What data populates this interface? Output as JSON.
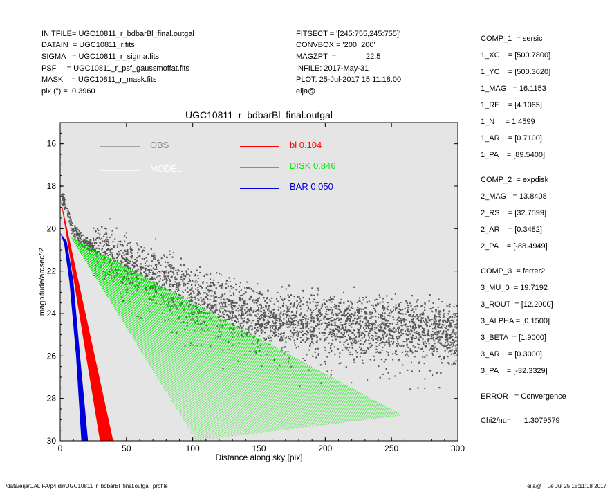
{
  "header": {
    "col1": [
      "INITFILE= UGC10811_r_bdbarBl_final.outgal",
      "DATAIN  = UGC10811_r.fits",
      "SIGMA   = UGC10811_r_sigma.fits",
      "PSF     = UGC10811_r_psf_gaussmoffat.fits",
      "MASK    = UGC10811_r_mask.fits",
      "pix (\") =  0.3960"
    ],
    "col2": [
      "FITSECT = '[245:755,245:755]'",
      "CONVBOX = '200, 200'",
      "MAGZPT  =              22.5",
      "INFILE: 2017-May-31",
      "PLOT: 25-Jul-2017 15:11:18.00",
      "eija@"
    ]
  },
  "components": [
    "COMP_1  = sersic",
    "1_XC    = [500.7800]",
    "1_YC    = [500.3620]",
    "1_MAG   = 16.1153",
    "1_RE    = [4.1065]",
    "1_N     = 1.4599",
    "1_AR    = [0.7100]",
    "1_PA    = [89.5400]",
    "",
    "COMP_2  = expdisk",
    "2_MAG   = 13.8408",
    "2_RS    = [32.7599]",
    "2_AR    = [0.3482]",
    "2_PA    = [-88.4949]",
    "",
    "COMP_3  = ferrer2",
    "3_MU_0  = 19.7192",
    "3_ROUT  = [12.2000]",
    "3_ALPHA = [0.1500]",
    "3_BETA  = [1.9000]",
    "3_AR    = [0.3000]",
    "3_PA    = [-32.3329]",
    "",
    "ERROR   = Convergence",
    "",
    "Chi2/nu=      1.3079579"
  ],
  "footer": {
    "left": "/data/eija/CALIFA/p4.dir/UGC10811_r_bdbarBl_final.outgal_profile",
    "right": "eija@  Tue Jul 25 15:11:18 2017"
  },
  "chart_data": {
    "type": "scatter",
    "title": "UGC10811_r_bdbarBl_final.outgal",
    "xlabel": "Distance along sky [pix]",
    "ylabel": "magnitude/arcsec^2",
    "xlim": [
      0,
      300
    ],
    "ylim": [
      30,
      15
    ],
    "y_inverted": true,
    "xticks": [
      0,
      50,
      100,
      150,
      200,
      250,
      300
    ],
    "yticks": [
      16,
      18,
      20,
      22,
      24,
      26,
      28,
      30
    ],
    "background": "#e5e5e5",
    "grid": false,
    "legend": [
      {
        "label": "OBS",
        "color": "#8c8c8c"
      },
      {
        "label": "MODEL",
        "color": "#ffffff"
      },
      {
        "label": "bl  0.104",
        "color": "#ff0000"
      },
      {
        "label": "DISK  0.846",
        "color": "#00ee00"
      },
      {
        "label": "BAR  0.050",
        "color": "#0000dd"
      }
    ],
    "series": [
      {
        "name": "OBS",
        "color": "#555555",
        "shape": "cloud",
        "points": [
          [
            0,
            18.1
          ],
          [
            5,
            19.2
          ],
          [
            10,
            20.1
          ],
          [
            20,
            20.7
          ],
          [
            40,
            21.3
          ],
          [
            60,
            21.9
          ],
          [
            80,
            22.5
          ],
          [
            100,
            23.1
          ],
          [
            120,
            23.6
          ],
          [
            140,
            24.0
          ],
          [
            160,
            24.3
          ],
          [
            200,
            24.5
          ],
          [
            250,
            24.7
          ],
          [
            300,
            24.8
          ]
        ],
        "spread_mag": 1.3
      },
      {
        "name": "bl",
        "color": "#ff0000",
        "shape": "band",
        "upper": [
          [
            0,
            18.5
          ],
          [
            40,
            30.0
          ]
        ],
        "lower": [
          [
            0,
            18.5
          ],
          [
            30,
            30.0
          ]
        ]
      },
      {
        "name": "BAR",
        "color": "#0000dd",
        "shape": "band",
        "upper": [
          [
            0,
            20.2
          ],
          [
            5,
            20.6
          ],
          [
            10,
            22.5
          ],
          [
            15,
            26.0
          ],
          [
            21,
            30.0
          ]
        ],
        "lower": [
          [
            0,
            20.2
          ],
          [
            3,
            20.7
          ],
          [
            7,
            22.5
          ],
          [
            12,
            26.0
          ],
          [
            16,
            30.0
          ]
        ]
      },
      {
        "name": "DISK",
        "color": "#00ee00",
        "shape": "fan",
        "apex": [
          8,
          20.4
        ],
        "upper_end": [
          258,
          28.8
        ],
        "lower_end": [
          103,
          30.0
        ]
      }
    ]
  }
}
